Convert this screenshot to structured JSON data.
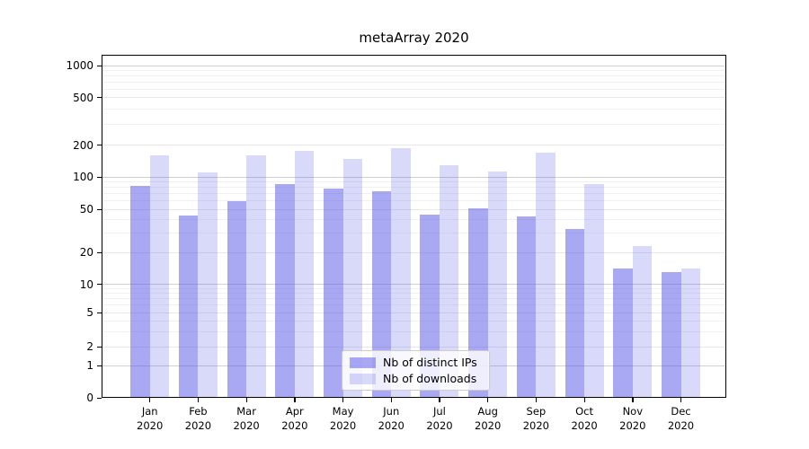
{
  "chart_data": {
    "type": "bar",
    "title": "metaArray 2020",
    "categories": [
      "Jan 2020",
      "Feb 2020",
      "Mar 2020",
      "Apr 2020",
      "May 2020",
      "Jun 2020",
      "Jul 2020",
      "Aug 2020",
      "Sep 2020",
      "Oct 2020",
      "Nov 2020",
      "Dec 2020"
    ],
    "series": [
      {
        "name": "Nb of distinct IPs",
        "color": "rgba(82,82,232,0.50)",
        "values": [
          82,
          44,
          59,
          85,
          78,
          73,
          45,
          51,
          43,
          33,
          14,
          13
        ]
      },
      {
        "name": "Nb of downloads",
        "color": "rgba(82,82,232,0.22)",
        "values": [
          161,
          111,
          161,
          176,
          147,
          186,
          130,
          112,
          170,
          86,
          23,
          14
        ]
      }
    ],
    "yticks": [
      0,
      1,
      2,
      5,
      10,
      20,
      50,
      100,
      200,
      500,
      1000
    ],
    "ylim": [
      0,
      1000
    ],
    "scale": "symlog",
    "grid": true,
    "legend_position": "lower center"
  }
}
